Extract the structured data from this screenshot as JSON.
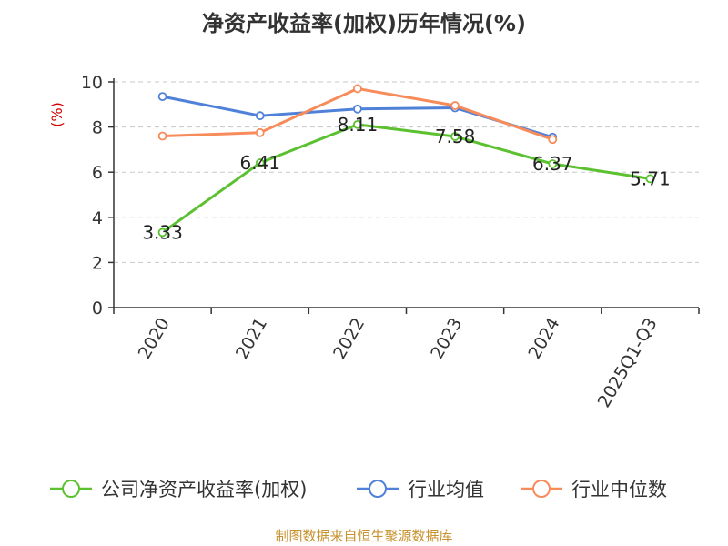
{
  "title": "净资产收益率(加权)历年情况(%)",
  "source": "制图数据来自恒生聚源数据库",
  "chart_data": {
    "type": "line",
    "title": "净资产收益率(加权)历年情况(%)",
    "ylabel": "(%)",
    "xlabel": "",
    "categories": [
      "2020",
      "2021",
      "2022",
      "2023",
      "2024",
      "2025Q1-Q3"
    ],
    "ylim": [
      0,
      10
    ],
    "yticks": [
      0,
      2,
      4,
      6,
      8,
      10
    ],
    "grid": true,
    "legend_position": "bottom",
    "series": [
      {
        "name": "公司净资产收益率(加权)",
        "color": "#5cc130",
        "values": [
          3.33,
          6.41,
          8.11,
          7.58,
          6.37,
          5.71
        ],
        "labels": true
      },
      {
        "name": "行业均值",
        "color": "#4f81d9",
        "values": [
          9.35,
          8.5,
          8.8,
          8.85,
          7.55,
          null
        ],
        "labels": false
      },
      {
        "name": "行业中位数",
        "color": "#f78b5a",
        "values": [
          7.6,
          7.75,
          9.7,
          8.95,
          7.45,
          null
        ],
        "labels": false
      }
    ]
  }
}
